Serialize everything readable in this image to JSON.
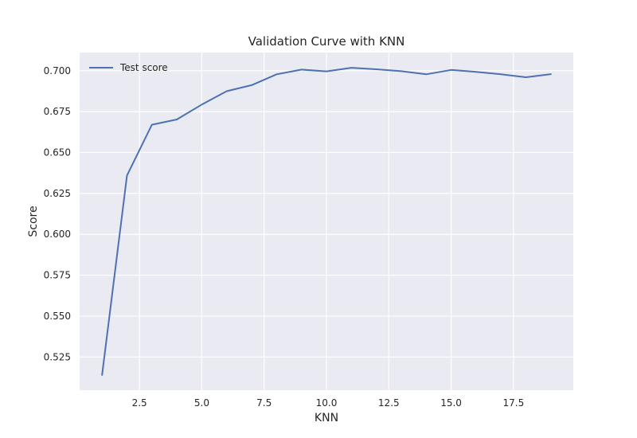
{
  "chart_data": {
    "type": "line",
    "title": "Validation Curve with KNN",
    "xlabel": "KNN",
    "ylabel": "Score",
    "xlim": [
      0.1,
      19.9
    ],
    "ylim": [
      0.5047,
      0.7111
    ],
    "xticks": [
      2.5,
      5.0,
      7.5,
      10.0,
      12.5,
      15.0,
      17.5
    ],
    "xtick_labels": [
      "2.5",
      "5.0",
      "7.5",
      "10.0",
      "12.5",
      "15.0",
      "17.5"
    ],
    "yticks": [
      0.525,
      0.55,
      0.575,
      0.6,
      0.625,
      0.65,
      0.675,
      0.7
    ],
    "ytick_labels": [
      "0.525",
      "0.550",
      "0.575",
      "0.600",
      "0.625",
      "0.650",
      "0.675",
      "0.700"
    ],
    "grid": true,
    "legend_position": "top-left",
    "x": [
      1,
      2,
      3,
      4,
      5,
      6,
      7,
      8,
      9,
      10,
      11,
      12,
      13,
      14,
      15,
      16,
      17,
      18,
      19
    ],
    "series": [
      {
        "name": "Test score",
        "color": "#4c72b0",
        "values": [
          0.514,
          0.636,
          0.667,
          0.6702,
          0.6793,
          0.6875,
          0.6912,
          0.6978,
          0.7007,
          0.6996,
          0.7018,
          0.7009,
          0.6997,
          0.6978,
          0.7005,
          0.6993,
          0.6978,
          0.696,
          0.6979
        ]
      }
    ],
    "colors": {
      "plot_background": "#eaeaf2",
      "grid": "#ffffff",
      "text": "#262626"
    }
  }
}
